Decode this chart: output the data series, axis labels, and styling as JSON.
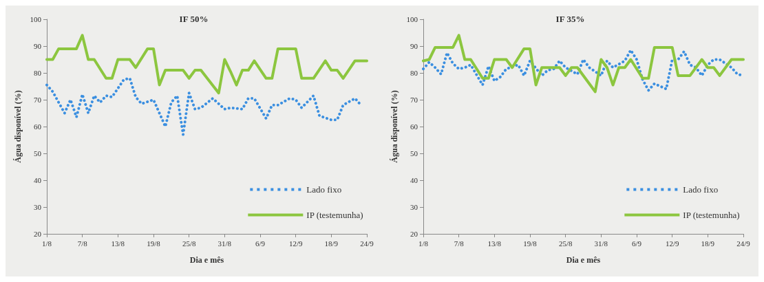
{
  "chart_data": [
    {
      "type": "line",
      "title": "IF 50%",
      "xlabel": "Dia e mês",
      "ylabel": "Água disponível (%)",
      "ylim": [
        20,
        100
      ],
      "yticks": [
        20,
        30,
        40,
        50,
        60,
        70,
        80,
        90,
        100
      ],
      "xlim": [
        "--08-01",
        "--09-24"
      ],
      "xticks": [
        {
          "value": "--08-01",
          "label": "1/8"
        },
        {
          "value": "--08-07",
          "label": "7/8"
        },
        {
          "value": "--08-13",
          "label": "13/8"
        },
        {
          "value": "--08-19",
          "label": "19/8"
        },
        {
          "value": "--08-25",
          "label": "25/8"
        },
        {
          "value": "--08-31",
          "label": "31/8"
        },
        {
          "value": "--09-06",
          "label": "6/9"
        },
        {
          "value": "--09-12",
          "label": "12/9"
        },
        {
          "value": "--09-18",
          "label": "18/9"
        },
        {
          "value": "--09-24",
          "label": "24/9"
        }
      ],
      "grid": false,
      "legend": "bottom right",
      "marker": "none",
      "series": [
        {
          "name": "Lado fixo",
          "color": "#3b8fe0",
          "line_style": "dotted",
          "x": [
            "--08-01",
            "--08-02",
            "--08-03",
            "--08-04",
            "--08-05",
            "--08-06",
            "--08-07",
            "--08-08",
            "--08-09",
            "--08-10",
            "--08-11",
            "--08-12",
            "--08-14",
            "--08-15",
            "--08-16",
            "--08-17",
            "--08-19",
            "--08-21",
            "--08-22",
            "--08-23",
            "--08-24",
            "--08-25",
            "--08-26",
            "--08-27",
            "--08-29",
            "--08-31",
            "--09-01",
            "--09-03",
            "--09-04",
            "--09-05",
            "--09-07",
            "--09-08",
            "--09-09",
            "--09-11",
            "--09-12",
            "--09-13",
            "--09-15",
            "--09-16",
            "--09-18",
            "--09-19",
            "--09-20",
            "--09-22",
            "--09-23"
          ],
          "values": [
            75.5,
            73,
            69,
            65,
            70,
            63.5,
            72,
            65,
            71.5,
            69,
            71.5,
            71,
            77.5,
            78,
            71,
            68.5,
            70,
            60,
            69,
            71.5,
            57,
            72.5,
            66.5,
            67,
            70.5,
            66.5,
            67,
            66.5,
            70.5,
            70.5,
            63,
            68,
            68,
            70.5,
            70,
            67,
            71.5,
            64,
            62.5,
            62.5,
            68,
            70.5,
            68
          ]
        },
        {
          "name": "IP (testemunha)",
          "color": "#8cc63f",
          "line_style": "solid",
          "x": [
            "--08-01",
            "--08-02",
            "--08-03",
            "--08-06",
            "--08-07",
            "--08-08",
            "--08-09",
            "--08-11",
            "--08-12",
            "--08-13",
            "--08-15",
            "--08-16",
            "--08-18",
            "--08-19",
            "--08-20",
            "--08-21",
            "--08-24",
            "--08-25",
            "--08-26",
            "--08-27",
            "--08-30",
            "--08-31",
            "--09-01",
            "--09-02",
            "--09-03",
            "--09-04",
            "--09-05",
            "--09-07",
            "--09-08",
            "--09-09",
            "--09-12",
            "--09-13",
            "--09-15",
            "--09-17",
            "--09-18",
            "--09-19",
            "--09-20",
            "--09-22",
            "--09-24"
          ],
          "values": [
            85,
            85,
            89,
            89,
            94,
            85,
            85,
            78,
            78,
            85,
            85,
            82,
            89,
            89,
            75.5,
            81,
            81,
            78,
            81,
            81,
            72.5,
            85,
            80.5,
            75.5,
            81,
            81,
            84.5,
            78,
            78,
            89,
            89,
            78,
            78,
            84.5,
            81,
            81,
            78,
            84.5,
            84.5
          ]
        }
      ]
    },
    {
      "type": "line",
      "title": "IF 35%",
      "xlabel": "Dia e mês",
      "ylabel": "Água disponível (%)",
      "ylim": [
        20,
        100
      ],
      "yticks": [
        20,
        30,
        40,
        50,
        60,
        70,
        80,
        90,
        100
      ],
      "xlim": [
        "--08-01",
        "--09-24"
      ],
      "xticks": [
        {
          "value": "--08-01",
          "label": "1/8"
        },
        {
          "value": "--08-07",
          "label": "7/8"
        },
        {
          "value": "--08-13",
          "label": "13/8"
        },
        {
          "value": "--08-19",
          "label": "19/8"
        },
        {
          "value": "--08-25",
          "label": "25/8"
        },
        {
          "value": "--08-31",
          "label": "31/8"
        },
        {
          "value": "--09-06",
          "label": "6/9"
        },
        {
          "value": "--09-12",
          "label": "12/9"
        },
        {
          "value": "--09-18",
          "label": "18/9"
        },
        {
          "value": "--09-24",
          "label": "24/9"
        }
      ],
      "grid": false,
      "legend": "bottom right",
      "marker": "none",
      "series": [
        {
          "name": "Lado fixo",
          "color": "#3b8fe0",
          "line_style": "dotted",
          "x": [
            "--08-01",
            "--08-02",
            "--08-03",
            "--08-04",
            "--08-05",
            "--08-06",
            "--08-07",
            "--08-08",
            "--08-09",
            "--08-11",
            "--08-12",
            "--08-13",
            "--08-14",
            "--08-15",
            "--08-17",
            "--08-18",
            "--08-19",
            "--08-21",
            "--08-22",
            "--08-23",
            "--08-24",
            "--08-25",
            "--08-27",
            "--08-28",
            "--08-29",
            "--08-31",
            "--09-01",
            "--09-02",
            "--09-04",
            "--09-05",
            "--09-06",
            "--09-07",
            "--09-08",
            "--09-09",
            "--09-11",
            "--09-12",
            "--09-13",
            "--09-14",
            "--09-15",
            "--09-16",
            "--09-17",
            "--09-18",
            "--09-19",
            "--09-20",
            "--09-22",
            "--09-23",
            "--09-24"
          ],
          "values": [
            81.5,
            84,
            82,
            79.5,
            87.5,
            83.5,
            81.5,
            82,
            83,
            75.5,
            82.5,
            77,
            78.5,
            81.5,
            83,
            79,
            84.5,
            79,
            81,
            81.5,
            84.5,
            82,
            79.5,
            85,
            82,
            79,
            84.5,
            82,
            84.5,
            88.5,
            85,
            77.5,
            73.5,
            76,
            74,
            85,
            85,
            88,
            83,
            82,
            79,
            83,
            85,
            85,
            82,
            79.5,
            79
          ]
        },
        {
          "name": "IP (testemunha)",
          "color": "#8cc63f",
          "line_style": "solid",
          "x": [
            "--08-01",
            "--08-02",
            "--08-03",
            "--08-06",
            "--08-07",
            "--08-08",
            "--08-09",
            "--08-11",
            "--08-12",
            "--08-13",
            "--08-15",
            "--08-16",
            "--08-18",
            "--08-19",
            "--08-20",
            "--08-21",
            "--08-24",
            "--08-25",
            "--08-26",
            "--08-27",
            "--08-30",
            "--08-31",
            "--09-01",
            "--09-02",
            "--09-03",
            "--09-04",
            "--09-05",
            "--09-07",
            "--09-08",
            "--09-09",
            "--09-12",
            "--09-13",
            "--09-15",
            "--09-17",
            "--09-18",
            "--09-19",
            "--09-20",
            "--09-22",
            "--09-24"
          ],
          "values": [
            84.5,
            85,
            89.5,
            89.5,
            94,
            85,
            85,
            78,
            78,
            85,
            85,
            82,
            89,
            89,
            75.5,
            82,
            82,
            79,
            82,
            82,
            73,
            85,
            82,
            75.5,
            82,
            82,
            85,
            78,
            78,
            89.5,
            89.5,
            79,
            79,
            85,
            82,
            82,
            79,
            85,
            85
          ]
        }
      ]
    }
  ]
}
